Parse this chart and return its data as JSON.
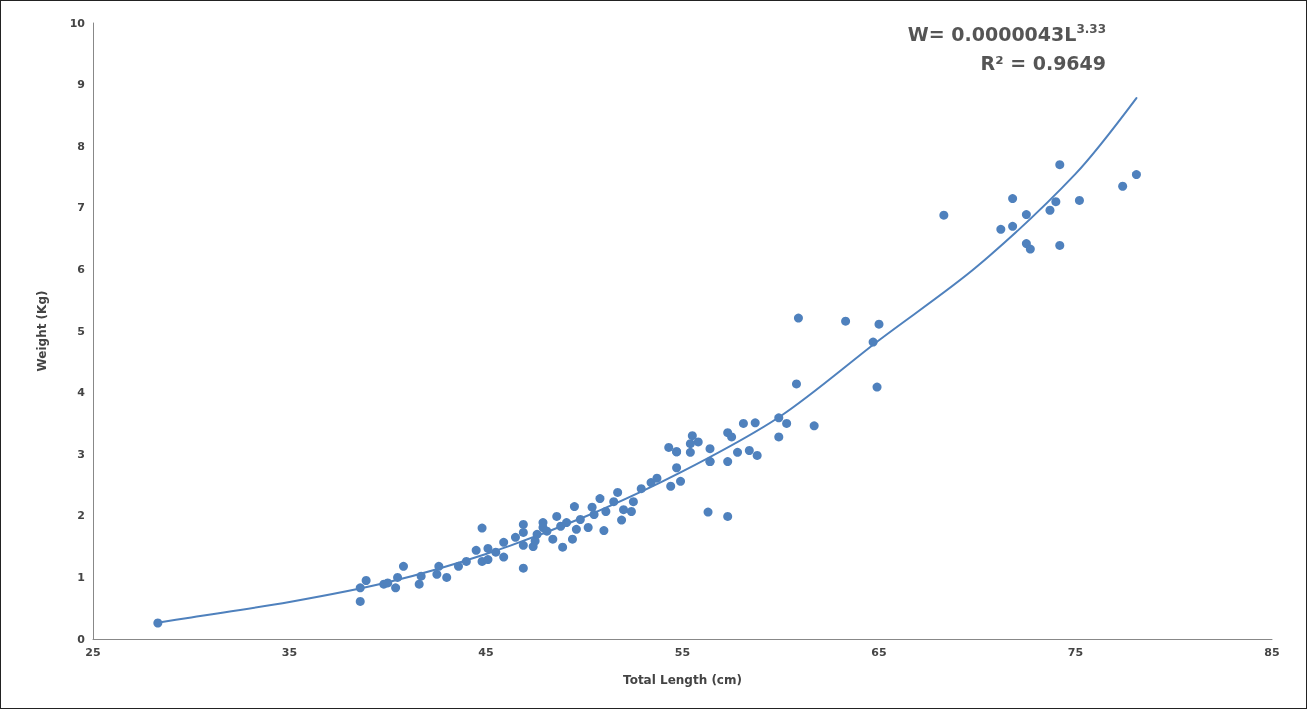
{
  "chart_data": {
    "type": "scatter",
    "xlabel": "Total Length (cm)",
    "ylabel": "Weight (Kg)",
    "annotations": [
      "W= 0.0000043L$^{3.33}$",
      "R² = 0.9649"
    ],
    "xlim": [
      25,
      85
    ],
    "xticks": [
      25,
      35,
      45,
      55,
      65,
      75,
      85
    ],
    "ylim": [
      0,
      10
    ],
    "yticks": [
      0,
      1,
      2,
      3,
      4,
      5,
      6,
      7,
      8,
      9,
      10
    ],
    "grid": false,
    "marker": "circle",
    "series": [
      {
        "type": "scatter",
        "color": "#4f81bd",
        "x": [
          28.3,
          38.6,
          38.6,
          38.9,
          39.8,
          40.0,
          40.4,
          40.5,
          40.8,
          41.6,
          41.7,
          42.5,
          42.6,
          43.0,
          43.6,
          44.0,
          44.5,
          44.8,
          44.8,
          45.1,
          45.1,
          45.5,
          45.9,
          45.9,
          46.5,
          46.9,
          46.9,
          46.9,
          46.9,
          47.4,
          47.5,
          47.6,
          47.9,
          47.9,
          48.1,
          48.4,
          48.6,
          48.8,
          48.9,
          49.1,
          49.4,
          49.5,
          49.6,
          49.8,
          50.2,
          50.4,
          50.5,
          50.8,
          51.0,
          51.1,
          51.5,
          51.7,
          51.9,
          52.0,
          52.4,
          52.5,
          52.9,
          53.4,
          53.7,
          54.4,
          54.7,
          54.9,
          56.3,
          56.4,
          57.3,
          60.9,
          63.3,
          65.0,
          64.7,
          60.8,
          64.9,
          59.9,
          60.3,
          59.9,
          61.7,
          58.1,
          58.7,
          57.3,
          57.5,
          58.4,
          58.8,
          57.8,
          57.3,
          56.4,
          56.4,
          55.5,
          55.8,
          55.4,
          55.4,
          54.3,
          54.7,
          54.7,
          74.2,
          78.1,
          77.4,
          71.8,
          68.3,
          74.0,
          75.2,
          73.7,
          72.5,
          71.8,
          71.2,
          72.5,
          72.7,
          74.2
        ],
        "values": [
          0.26,
          0.61,
          0.83,
          0.95,
          0.89,
          0.91,
          0.83,
          1.0,
          1.18,
          0.89,
          1.02,
          1.05,
          1.18,
          1.0,
          1.18,
          1.26,
          1.44,
          1.8,
          1.26,
          1.47,
          1.29,
          1.41,
          1.57,
          1.33,
          1.65,
          1.86,
          1.73,
          1.15,
          1.52,
          1.5,
          1.59,
          1.7,
          1.81,
          1.89,
          1.75,
          1.62,
          1.99,
          1.83,
          1.49,
          1.89,
          1.62,
          2.15,
          1.78,
          1.94,
          1.81,
          2.14,
          2.02,
          2.28,
          1.76,
          2.07,
          2.23,
          2.38,
          1.93,
          2.1,
          2.07,
          2.23,
          2.44,
          2.54,
          2.61,
          2.48,
          2.78,
          2.56,
          2.06,
          2.88,
          1.99,
          5.21,
          5.16,
          5.11,
          4.82,
          4.14,
          4.09,
          3.59,
          3.5,
          3.28,
          3.46,
          3.5,
          3.51,
          3.35,
          3.28,
          3.06,
          2.98,
          3.03,
          2.88,
          3.09,
          2.88,
          3.3,
          3.2,
          3.17,
          3.03,
          3.11,
          3.04,
          3.04,
          7.7,
          7.54,
          7.35,
          7.15,
          6.88,
          7.1,
          7.12,
          6.96,
          6.89,
          6.7,
          6.65,
          6.42,
          6.33,
          6.39
        ]
      },
      {
        "type": "line",
        "color": "#4f81bd",
        "marker": "none",
        "line_style": "solid",
        "x": [
          28.2,
          30,
          35,
          40,
          45,
          50,
          55,
          60,
          65,
          70,
          75,
          78.1
        ],
        "values": [
          0.26,
          0.35,
          0.6,
          0.92,
          1.38,
          1.98,
          2.72,
          3.62,
          4.85,
          6.05,
          7.55,
          8.78
        ]
      }
    ]
  }
}
